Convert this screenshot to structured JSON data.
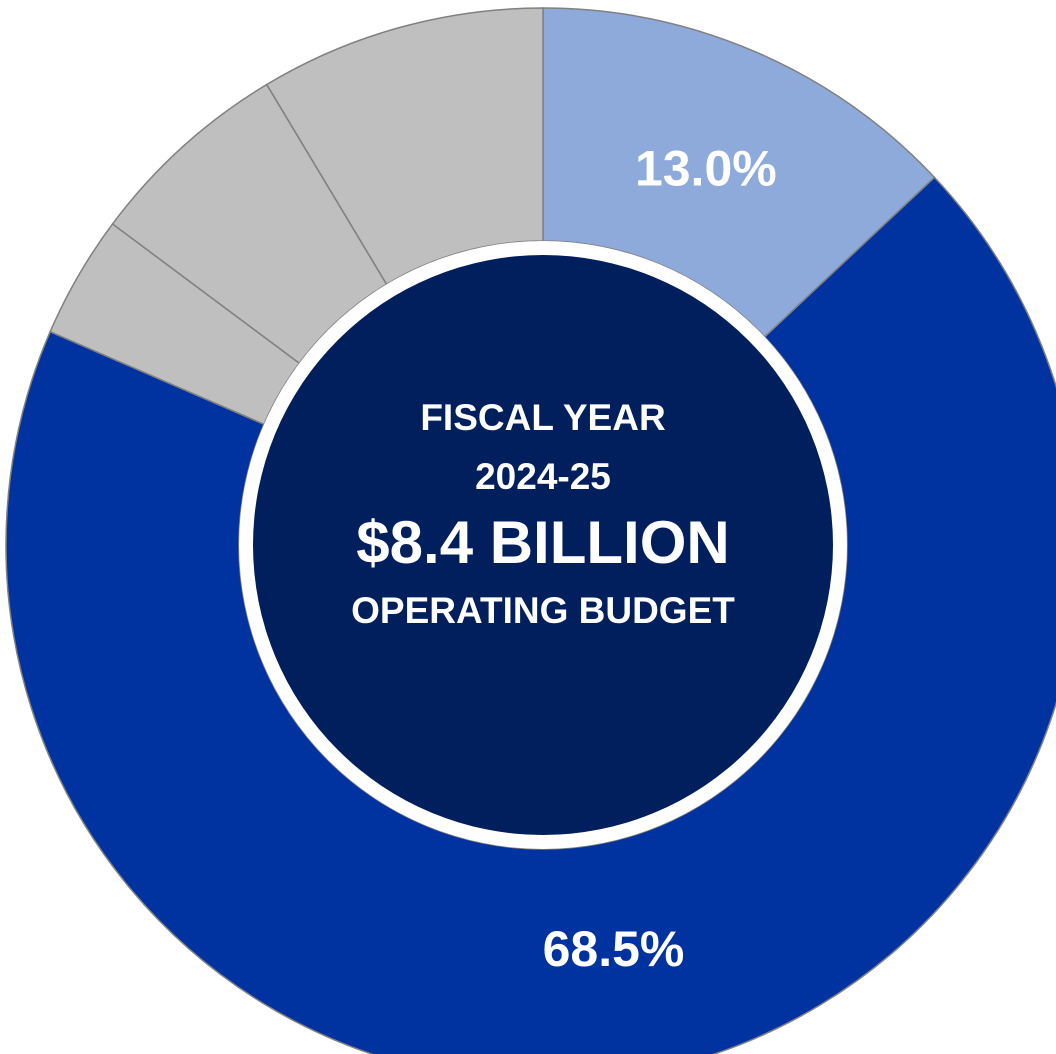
{
  "chart_data": {
    "type": "pie",
    "variant": "donut",
    "slices": [
      {
        "value": 13.0,
        "label": "13.0%",
        "color": "#8eaadb"
      },
      {
        "value": 68.5,
        "label": "68.5%",
        "color": "#0033a0"
      },
      {
        "value": 3.7,
        "label": "",
        "color": "#bfbfbf"
      },
      {
        "value": 6.2,
        "label": "",
        "color": "#bfbfbf"
      },
      {
        "value": 8.6,
        "label": "",
        "color": "#bfbfbf"
      }
    ],
    "start_angle_deg": 0,
    "direction": "clockwise",
    "center": {
      "line1": "FISCAL YEAR",
      "line2": "2024-25",
      "line3": "$8.4 BILLION",
      "line4": "OPERATING BUDGET",
      "fill": "#001f5c"
    },
    "legend": "none"
  }
}
